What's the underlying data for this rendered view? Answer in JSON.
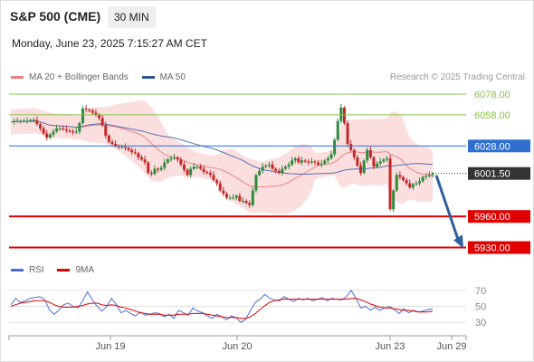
{
  "header": {
    "symbol": "S&P 500 (CME)",
    "timeframe": "30 MIN",
    "datetime": "Monday, June 23, 2025 7:15:27 AM CET"
  },
  "legend_main": [
    {
      "label": "MA 20 + Bollinger Bands",
      "color": "#f08080"
    },
    {
      "label": "MA 50",
      "color": "#2f5597"
    }
  ],
  "legend_rsi": [
    {
      "label": "RSI",
      "color": "#4a6fd4"
    },
    {
      "label": "9MA",
      "color": "#e00000"
    }
  ],
  "credit": "Research © 2025 Trading Central",
  "colors": {
    "up": "#2e8b3e",
    "down": "#c62828",
    "resistance": "#8bc34a",
    "support": "#e00000",
    "pivot": "#2f6fd0",
    "current": "#333333",
    "arrow": "#2f5f9e",
    "band_fill": "#f9d4d4"
  },
  "chart_data": [
    {
      "type": "candlestick",
      "title": "",
      "x_ticks": [
        "Jun 19",
        "Jun 20",
        "Jun 23",
        "Jun 29"
      ],
      "y_range": [
        5920,
        6085
      ],
      "levels": [
        {
          "value": 6078.0,
          "label": "6078.00",
          "kind": "resistance"
        },
        {
          "value": 6058.0,
          "label": "6058.00",
          "kind": "resistance"
        },
        {
          "value": 6028.0,
          "label": "6028.00",
          "kind": "pivot"
        },
        {
          "value": 6001.5,
          "label": "6001.50",
          "kind": "current"
        },
        {
          "value": 5960.0,
          "label": "5960.00",
          "kind": "support"
        },
        {
          "value": 5930.0,
          "label": "5930.00",
          "kind": "support"
        }
      ],
      "close_series": [
        6051,
        6052,
        6052,
        6052,
        6052,
        6052,
        6053,
        6053,
        6049,
        6045,
        6040,
        6036,
        6039,
        6042,
        6045,
        6045,
        6044,
        6043,
        6042,
        6041,
        6042,
        6050,
        6064,
        6063,
        6062,
        6060,
        6058,
        6055,
        6048,
        6038,
        6032,
        6030,
        6028,
        6027,
        6027,
        6026,
        6024,
        6022,
        6021,
        6017,
        6015,
        6012,
        6002,
        6001,
        6006,
        6005,
        6007,
        6012,
        6015,
        6016,
        6017,
        6015,
        6010,
        6005,
        6000,
        6006,
        6008,
        6008,
        6006,
        6003,
        6002,
        6000,
        5995,
        5992,
        5985,
        5982,
        5978,
        5978,
        5978,
        5980,
        5975,
        5975,
        5973,
        5971,
        5985,
        6000,
        6004,
        6008,
        6009,
        6010,
        6006,
        6004,
        6002,
        6006,
        6008,
        6010,
        6014,
        6016,
        6012,
        6014,
        6013,
        6012,
        6013,
        6012,
        6010,
        6011,
        6014,
        6016,
        6020,
        6034,
        6052,
        6065,
        6050,
        6030,
        6024,
        6017,
        6009,
        6002,
        6014,
        6024,
        6017,
        6008,
        6011,
        6013,
        6015,
        6016,
        5967,
        5985,
        6000,
        5998,
        5995,
        5992,
        5988,
        5991,
        5992,
        5994,
        5998,
        5999,
        6000,
        6001.5
      ],
      "series": [
        {
          "name": "MA 20 + Bollinger Bands"
        },
        {
          "name": "MA 50"
        }
      ]
    },
    {
      "type": "line",
      "title": "",
      "y_ticks": [
        70,
        50,
        30
      ],
      "y_range": [
        20,
        80
      ],
      "series": [
        {
          "name": "RSI",
          "values": [
            52,
            60,
            55,
            57,
            60,
            61,
            62,
            59,
            46,
            40,
            45,
            52,
            54,
            50,
            48,
            57,
            68,
            58,
            50,
            44,
            50,
            60,
            52,
            42,
            45,
            41,
            38,
            43,
            39,
            40,
            42,
            41,
            37,
            40,
            35,
            45,
            42,
            39,
            48,
            44,
            42,
            38,
            35,
            40,
            37,
            33,
            38,
            36,
            30,
            34,
            45,
            55,
            59,
            65,
            60,
            58,
            57,
            62,
            59,
            56,
            60,
            58,
            60,
            57,
            59,
            61,
            57,
            60,
            59,
            58,
            62,
            70,
            60,
            48,
            50,
            45,
            49,
            45,
            48,
            50,
            46,
            41,
            47,
            42,
            45,
            43,
            44,
            46,
            47
          ]
        },
        {
          "name": "9MA",
          "values": [
            50,
            52,
            54,
            55,
            56,
            57,
            57,
            57,
            55,
            52,
            50,
            49,
            49,
            49,
            50,
            51,
            53,
            54,
            54,
            52,
            51,
            52,
            51,
            49,
            48,
            46,
            44,
            42,
            41,
            40,
            40,
            40,
            39,
            39,
            39,
            40,
            40,
            40,
            41,
            41,
            41,
            40,
            39,
            38,
            37,
            36,
            36,
            36,
            35,
            35,
            37,
            41,
            46,
            51,
            55,
            57,
            58,
            59,
            59,
            59,
            59,
            59,
            59,
            59,
            59,
            59,
            59,
            59,
            59,
            59,
            59,
            60,
            60,
            58,
            56,
            53,
            51,
            49,
            48,
            48,
            47,
            46,
            45,
            45,
            44,
            43,
            43,
            43,
            44
          ]
        }
      ]
    }
  ]
}
